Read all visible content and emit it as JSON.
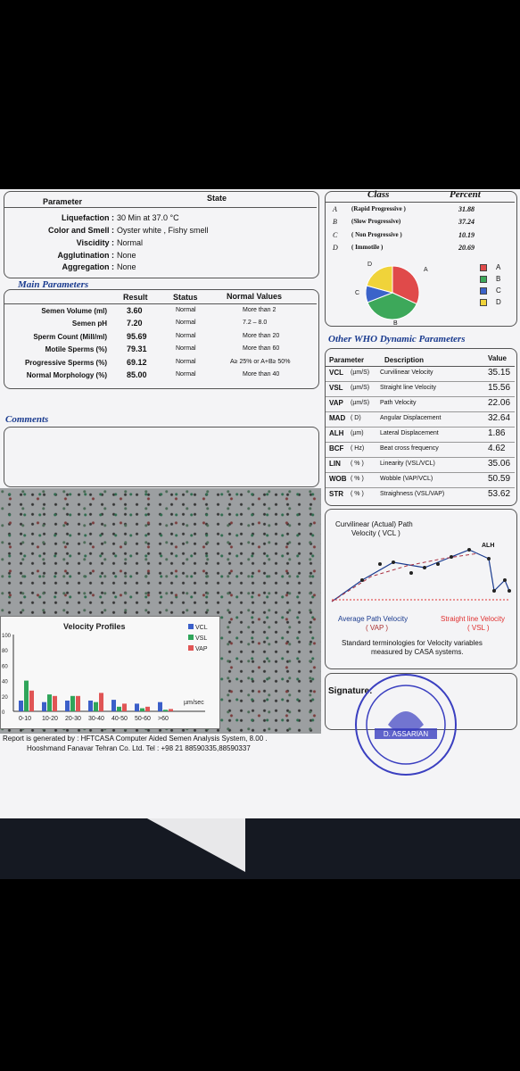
{
  "physical": {
    "header_param": "Parameter",
    "header_state": "State",
    "rows": [
      {
        "label": "Liquefaction :",
        "value": "30  Min at  37.0 °C"
      },
      {
        "label": "Color and Smell :",
        "value": "Oyster white ,    Fishy smell"
      },
      {
        "label": "Viscidity :",
        "value": "Normal"
      },
      {
        "label": "Agglutination :",
        "value": "None"
      },
      {
        "label": "Aggregation :",
        "value": "None"
      }
    ]
  },
  "class_table": {
    "header_class": "Class",
    "header_percent": "Percent",
    "rows": [
      {
        "letter": "A",
        "name": "(Rapid Progressive )",
        "percent": "31.88"
      },
      {
        "letter": "B",
        "name": "(Slow Progressive)",
        "percent": "37.24"
      },
      {
        "letter": "C",
        "name": "( Non Progressive )",
        "percent": "10.19"
      },
      {
        "letter": "D",
        "name": "( Immotile )",
        "percent": "20.69"
      }
    ],
    "pie": [
      {
        "label": "A",
        "value": 31.88,
        "color": "#e04a4a"
      },
      {
        "label": "B",
        "value": 37.24,
        "color": "#3da85a"
      },
      {
        "label": "C",
        "value": 10.19,
        "color": "#3b63c9"
      },
      {
        "label": "D",
        "value": 20.69,
        "color": "#f0d33a"
      }
    ],
    "legend": [
      "A",
      "B",
      "C",
      "D"
    ]
  },
  "main": {
    "title": "Main Parameters",
    "headers": [
      "Result",
      "Status",
      "Normal Values"
    ],
    "rows": [
      {
        "label": "Semen Volume (ml)",
        "result": "3.60",
        "status": "Normal",
        "normal": "More than  2"
      },
      {
        "label": "Semen pH",
        "result": "7.20",
        "status": "Normal",
        "normal": "7.2 – 8.0"
      },
      {
        "label": "Sperm Count (Mill/ml)",
        "result": "95.69",
        "status": "Normal",
        "normal": "More than  20"
      },
      {
        "label": "Motile Sperms (%)",
        "result": "79.31",
        "status": "Normal",
        "normal": "More than 60"
      },
      {
        "label": "Progressive Sperms (%)",
        "result": "69.12",
        "status": "Normal",
        "normal": "A≥ 25% or A+B≥ 50%"
      },
      {
        "label": "Normal Morphology (%)",
        "result": "85.00",
        "status": "Normal",
        "normal": "More than  40"
      }
    ]
  },
  "who": {
    "title": "Other WHO Dynamic Parameters",
    "headers": [
      "Parameter",
      "Description",
      "Value"
    ],
    "rows": [
      {
        "param": "VCL",
        "unit": "(µm/S)",
        "desc": "Curvilinear Velocity",
        "value": "35.15"
      },
      {
        "param": "VSL",
        "unit": "(µm/S)",
        "desc": "Straight line Velocity",
        "value": "15.56"
      },
      {
        "param": "VAP",
        "unit": "(µm/S)",
        "desc": "Path Velocity",
        "value": "22.06"
      },
      {
        "param": "MAD",
        "unit": "( D)",
        "desc": "Angular Displacement",
        "value": "32.64"
      },
      {
        "param": "ALH",
        "unit": "(µm)",
        "desc": "Lateral Displacement",
        "value": "1.86"
      },
      {
        "param": "BCF",
        "unit": "( Hz)",
        "desc": "Beat cross frequency",
        "value": "4.62"
      },
      {
        "param": "LIN",
        "unit": "( % )",
        "desc": "Linearity (VSL/VCL)",
        "value": "35.06"
      },
      {
        "param": "WOB",
        "unit": "( % )",
        "desc": "Wobble  (VAP/VCL)",
        "value": "50.59"
      },
      {
        "param": "STR",
        "unit": "( % )",
        "desc": "Straighness (VSL/VAP)",
        "value": "53.62"
      }
    ]
  },
  "comments": {
    "title": "Comments"
  },
  "velocity_diagram": {
    "title_line1": "Curvilinear (Actual) Path",
    "title_line2": "Velocity ( VCL )",
    "alh": "ALH",
    "vap_label": "Average Path Velocity",
    "vap_abbr": "( VAP )",
    "vsl_label": "Straight line Velocity",
    "vsl_abbr": "( VSL )",
    "note_line1": "Standard terminologies for Velocity variables",
    "note_line2": "measured by CASA systems."
  },
  "chart_data": {
    "type": "bar",
    "title": "Velocity Profiles",
    "categories": [
      "0-10",
      "10-20",
      "20-30",
      "30-40",
      "40-50",
      "50-60",
      ">60"
    ],
    "series": [
      {
        "name": "VCL",
        "values": [
          14,
          12,
          14,
          14,
          15,
          10,
          12
        ],
        "color": "#3b5fc9"
      },
      {
        "name": "VSL",
        "values": [
          40,
          22,
          20,
          12,
          6,
          4,
          2
        ],
        "color": "#2fa55a"
      },
      {
        "name": "VAP",
        "values": [
          27,
          20,
          20,
          24,
          10,
          6,
          3
        ],
        "color": "#e05555"
      }
    ],
    "xunit": "µm/sec",
    "yticks": [
      "0",
      "10",
      "20",
      "30",
      "40",
      "50",
      "60",
      "70",
      "80",
      "90",
      "100"
    ],
    "ylim": [
      0,
      100
    ]
  },
  "signature": {
    "label": "Signature:",
    "stamp_text": "D. ASSARIAN"
  },
  "footer": {
    "line1": "Report is generated by : HFTCASA Computer Aided Semen Analysis System, 8.00 .",
    "line2": "Hooshmand Fanavar Tehran Co. Ltd.    Tel : +98 21 88590335,88590337"
  }
}
